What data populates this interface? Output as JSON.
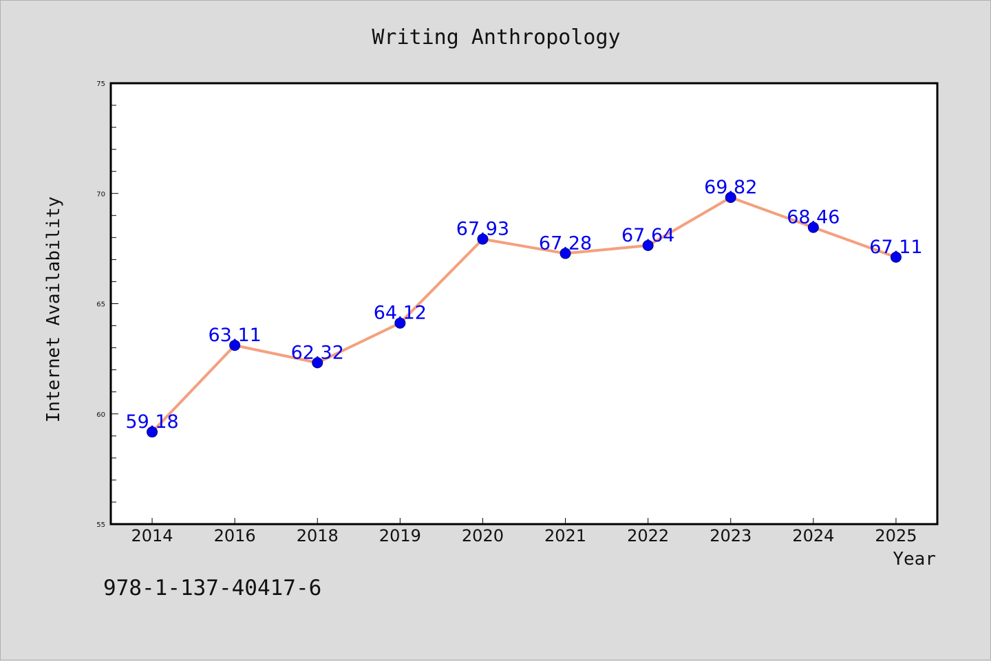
{
  "colors": {
    "background": "#dcdcdc",
    "plot_background": "#ffffff",
    "line": "#f4a07e",
    "marker": "#0000ee",
    "data_label": "#0000ee",
    "axis": "#000000"
  },
  "footer": {
    "isbn": "978-1-137-40417-6"
  },
  "chart_data": {
    "type": "line",
    "title": "Writing Anthropology",
    "xlabel": "Year",
    "ylabel": "Internet Availability",
    "categories": [
      "2014",
      "2016",
      "2018",
      "2019",
      "2020",
      "2021",
      "2022",
      "2023",
      "2024",
      "2025"
    ],
    "series": [
      {
        "values": [
          59.18,
          63.11,
          62.32,
          64.12,
          67.93,
          67.28,
          67.64,
          69.82,
          68.46,
          67.11
        ],
        "data_labels": [
          "59.18",
          "63.11",
          "62.32",
          "64.12",
          "67.93",
          "67.28",
          "67.64",
          "69.82",
          "68.46",
          "67.11"
        ]
      }
    ],
    "ylim": [
      55,
      75
    ],
    "yticks": [
      "55",
      "60",
      "65",
      "70",
      "75"
    ],
    "y_minor_step": 1,
    "grid": false,
    "legend": "none",
    "markers": "filled circle"
  }
}
